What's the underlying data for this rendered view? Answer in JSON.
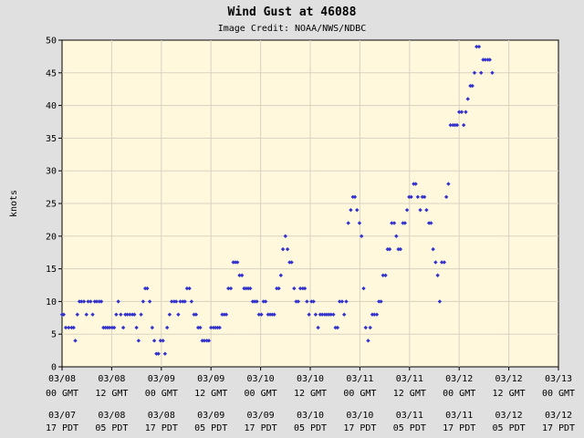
{
  "chart_data": {
    "type": "scatter",
    "title": "Wind Gust at 46088",
    "subtitle": "Image Credit: NOAA/NWS/NDBC",
    "ylabel": "knots",
    "xlabel": "",
    "ylim": [
      0,
      50
    ],
    "yticks": [
      0,
      5,
      10,
      15,
      20,
      25,
      30,
      35,
      40,
      45,
      50
    ],
    "grid": true,
    "x_range_hours": [
      0,
      120
    ],
    "x_ticks": [
      {
        "gmt_date": "03/08",
        "gmt_time": "00 GMT",
        "pdt_date": "03/07",
        "pdt_time": "17 PDT"
      },
      {
        "gmt_date": "03/08",
        "gmt_time": "12 GMT",
        "pdt_date": "03/08",
        "pdt_time": "05 PDT"
      },
      {
        "gmt_date": "03/09",
        "gmt_time": "00 GMT",
        "pdt_date": "03/08",
        "pdt_time": "17 PDT"
      },
      {
        "gmt_date": "03/09",
        "gmt_time": "12 GMT",
        "pdt_date": "03/09",
        "pdt_time": "05 PDT"
      },
      {
        "gmt_date": "03/10",
        "gmt_time": "00 GMT",
        "pdt_date": "03/09",
        "pdt_time": "17 PDT"
      },
      {
        "gmt_date": "03/10",
        "gmt_time": "12 GMT",
        "pdt_date": "03/10",
        "pdt_time": "05 PDT"
      },
      {
        "gmt_date": "03/11",
        "gmt_time": "00 GMT",
        "pdt_date": "03/10",
        "pdt_time": "17 PDT"
      },
      {
        "gmt_date": "03/11",
        "gmt_time": "12 GMT",
        "pdt_date": "03/11",
        "pdt_time": "05 PDT"
      },
      {
        "gmt_date": "03/12",
        "gmt_time": "00 GMT",
        "pdt_date": "03/11",
        "pdt_time": "17 PDT"
      },
      {
        "gmt_date": "03/12",
        "gmt_time": "12 GMT",
        "pdt_date": "03/12",
        "pdt_time": "05 PDT"
      },
      {
        "gmt_date": "03/13",
        "gmt_time": "00 GMT",
        "pdt_date": "03/12",
        "pdt_time": "17 PDT"
      }
    ],
    "colors": {
      "marker": "#3333cc",
      "plot_bg": "#fff8dc",
      "page_bg": "#e0e0e0",
      "grid": "#d9d2c2"
    },
    "points": [
      [
        0.0,
        8
      ],
      [
        0.4,
        8
      ],
      [
        0.9,
        6
      ],
      [
        1.6,
        6
      ],
      [
        2.3,
        6
      ],
      [
        2.8,
        6
      ],
      [
        3.2,
        4
      ],
      [
        3.7,
        8
      ],
      [
        4.2,
        10
      ],
      [
        4.7,
        10
      ],
      [
        5.3,
        10
      ],
      [
        5.9,
        8
      ],
      [
        6.3,
        10
      ],
      [
        6.9,
        10
      ],
      [
        7.4,
        8
      ],
      [
        7.9,
        10
      ],
      [
        8.4,
        10
      ],
      [
        9.0,
        10
      ],
      [
        9.5,
        10
      ],
      [
        10.0,
        6
      ],
      [
        10.5,
        6
      ],
      [
        11.0,
        6
      ],
      [
        11.5,
        6
      ],
      [
        12.1,
        6
      ],
      [
        12.6,
        6
      ],
      [
        13.1,
        8
      ],
      [
        13.6,
        10
      ],
      [
        14.2,
        8
      ],
      [
        14.8,
        6
      ],
      [
        15.3,
        8
      ],
      [
        15.8,
        8
      ],
      [
        16.4,
        8
      ],
      [
        17.0,
        8
      ],
      [
        17.5,
        8
      ],
      [
        18.0,
        6
      ],
      [
        18.5,
        4
      ],
      [
        19.1,
        8
      ],
      [
        19.6,
        10
      ],
      [
        20.1,
        12
      ],
      [
        20.6,
        12
      ],
      [
        21.2,
        10
      ],
      [
        21.8,
        6
      ],
      [
        22.3,
        4
      ],
      [
        22.8,
        2
      ],
      [
        23.3,
        2
      ],
      [
        23.8,
        4
      ],
      [
        24.4,
        4
      ],
      [
        24.9,
        2
      ],
      [
        25.4,
        6
      ],
      [
        26.0,
        8
      ],
      [
        26.5,
        10
      ],
      [
        27.1,
        10
      ],
      [
        27.6,
        10
      ],
      [
        28.1,
        8
      ],
      [
        28.6,
        10
      ],
      [
        29.2,
        10
      ],
      [
        29.7,
        10
      ],
      [
        30.2,
        12
      ],
      [
        30.8,
        12
      ],
      [
        31.3,
        10
      ],
      [
        31.9,
        8
      ],
      [
        32.4,
        8
      ],
      [
        32.9,
        6
      ],
      [
        33.4,
        6
      ],
      [
        33.9,
        4
      ],
      [
        34.4,
        4
      ],
      [
        35.0,
        4
      ],
      [
        35.5,
        4
      ],
      [
        36.0,
        6
      ],
      [
        36.6,
        6
      ],
      [
        37.1,
        6
      ],
      [
        37.6,
        6
      ],
      [
        38.1,
        6
      ],
      [
        38.7,
        8
      ],
      [
        39.2,
        8
      ],
      [
        39.7,
        8
      ],
      [
        40.2,
        12
      ],
      [
        40.8,
        12
      ],
      [
        41.4,
        16
      ],
      [
        41.9,
        16
      ],
      [
        42.4,
        16
      ],
      [
        42.9,
        14
      ],
      [
        43.5,
        14
      ],
      [
        44.0,
        12
      ],
      [
        44.5,
        12
      ],
      [
        45.0,
        12
      ],
      [
        45.5,
        12
      ],
      [
        46.1,
        10
      ],
      [
        46.6,
        10
      ],
      [
        47.1,
        10
      ],
      [
        47.6,
        8
      ],
      [
        48.2,
        8
      ],
      [
        48.7,
        10
      ],
      [
        49.2,
        10
      ],
      [
        49.8,
        8
      ],
      [
        50.3,
        8
      ],
      [
        50.8,
        8
      ],
      [
        51.3,
        8
      ],
      [
        51.9,
        12
      ],
      [
        52.4,
        12
      ],
      [
        52.9,
        14
      ],
      [
        53.4,
        18
      ],
      [
        54.0,
        20
      ],
      [
        54.5,
        18
      ],
      [
        55.0,
        16
      ],
      [
        55.5,
        16
      ],
      [
        56.1,
        12
      ],
      [
        56.6,
        10
      ],
      [
        57.1,
        10
      ],
      [
        57.6,
        12
      ],
      [
        58.2,
        12
      ],
      [
        58.7,
        12
      ],
      [
        59.2,
        10
      ],
      [
        59.7,
        8
      ],
      [
        60.3,
        10
      ],
      [
        60.8,
        10
      ],
      [
        61.3,
        8
      ],
      [
        61.9,
        6
      ],
      [
        62.4,
        8
      ],
      [
        62.9,
        8
      ],
      [
        63.5,
        8
      ],
      [
        64.0,
        8
      ],
      [
        64.5,
        8
      ],
      [
        65.0,
        8
      ],
      [
        65.6,
        8
      ],
      [
        66.1,
        6
      ],
      [
        66.6,
        6
      ],
      [
        67.1,
        10
      ],
      [
        67.7,
        10
      ],
      [
        68.2,
        8
      ],
      [
        68.7,
        10
      ],
      [
        69.2,
        22
      ],
      [
        69.8,
        24
      ],
      [
        70.3,
        26
      ],
      [
        70.8,
        26
      ],
      [
        71.3,
        24
      ],
      [
        71.9,
        22
      ],
      [
        72.4,
        20
      ],
      [
        72.9,
        12
      ],
      [
        73.4,
        6
      ],
      [
        74.0,
        4
      ],
      [
        74.5,
        6
      ],
      [
        75.0,
        8
      ],
      [
        75.5,
        8
      ],
      [
        76.1,
        8
      ],
      [
        76.6,
        10
      ],
      [
        77.1,
        10
      ],
      [
        77.6,
        14
      ],
      [
        78.2,
        14
      ],
      [
        78.7,
        18
      ],
      [
        79.2,
        18
      ],
      [
        79.7,
        22
      ],
      [
        80.3,
        22
      ],
      [
        80.8,
        20
      ],
      [
        81.3,
        18
      ],
      [
        81.8,
        18
      ],
      [
        82.4,
        22
      ],
      [
        82.9,
        22
      ],
      [
        83.4,
        24
      ],
      [
        83.9,
        26
      ],
      [
        84.4,
        26
      ],
      [
        85.0,
        28
      ],
      [
        85.5,
        28
      ],
      [
        86.0,
        26
      ],
      [
        86.6,
        24
      ],
      [
        87.1,
        26
      ],
      [
        87.6,
        26
      ],
      [
        88.1,
        24
      ],
      [
        88.7,
        22
      ],
      [
        89.2,
        22
      ],
      [
        89.7,
        18
      ],
      [
        90.3,
        16
      ],
      [
        90.8,
        14
      ],
      [
        91.3,
        10
      ],
      [
        91.8,
        16
      ],
      [
        92.4,
        16
      ],
      [
        92.9,
        26
      ],
      [
        93.4,
        28
      ],
      [
        93.9,
        37
      ],
      [
        94.5,
        37
      ],
      [
        95.0,
        37
      ],
      [
        95.5,
        37
      ],
      [
        96.0,
        39
      ],
      [
        96.6,
        39
      ],
      [
        97.1,
        37
      ],
      [
        97.6,
        39
      ],
      [
        98.1,
        41
      ],
      [
        98.7,
        43
      ],
      [
        99.2,
        43
      ],
      [
        99.7,
        45
      ],
      [
        100.2,
        49
      ],
      [
        100.8,
        49
      ],
      [
        101.3,
        45
      ],
      [
        101.8,
        47
      ],
      [
        102.3,
        47
      ],
      [
        102.9,
        47
      ],
      [
        103.4,
        47
      ],
      [
        104.0,
        45
      ]
    ]
  }
}
